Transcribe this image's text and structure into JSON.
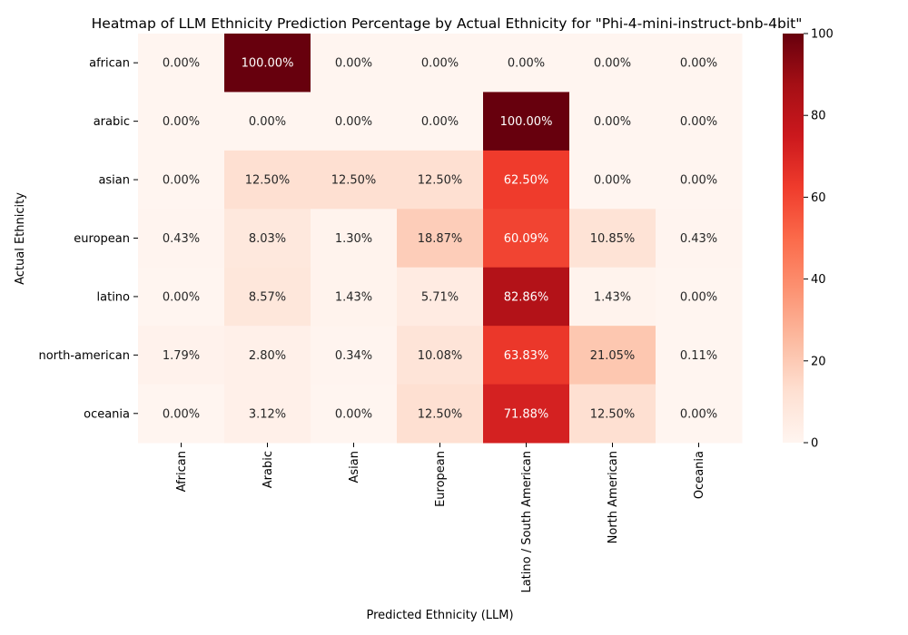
{
  "chart_data": {
    "type": "heatmap",
    "title": "Heatmap of LLM Ethnicity Prediction Percentage by Actual Ethnicity for \"Phi-4-mini-instruct-bnb-4bit\"",
    "xlabel": "Predicted Ethnicity (LLM)",
    "ylabel": "Actual Ethnicity",
    "x_categories": [
      "African",
      "Arabic",
      "Asian",
      "European",
      "Latino / South American",
      "North American",
      "Oceania"
    ],
    "y_categories": [
      "african",
      "arabic",
      "asian",
      "european",
      "latino",
      "north-american",
      "oceania"
    ],
    "values": [
      [
        0.0,
        100.0,
        0.0,
        0.0,
        0.0,
        0.0,
        0.0
      ],
      [
        0.0,
        0.0,
        0.0,
        0.0,
        100.0,
        0.0,
        0.0
      ],
      [
        0.0,
        12.5,
        12.5,
        12.5,
        62.5,
        0.0,
        0.0
      ],
      [
        0.43,
        8.03,
        1.3,
        18.87,
        60.09,
        10.85,
        0.43
      ],
      [
        0.0,
        8.57,
        1.43,
        5.71,
        82.86,
        1.43,
        0.0
      ],
      [
        1.79,
        2.8,
        0.34,
        10.08,
        63.83,
        21.05,
        0.11
      ],
      [
        0.0,
        3.12,
        0.0,
        12.5,
        71.88,
        12.5,
        0.0
      ]
    ],
    "value_labels": [
      [
        "0.00%",
        "100.00%",
        "0.00%",
        "0.00%",
        "0.00%",
        "0.00%",
        "0.00%"
      ],
      [
        "0.00%",
        "0.00%",
        "0.00%",
        "0.00%",
        "100.00%",
        "0.00%",
        "0.00%"
      ],
      [
        "0.00%",
        "12.50%",
        "12.50%",
        "12.50%",
        "62.50%",
        "0.00%",
        "0.00%"
      ],
      [
        "0.43%",
        "8.03%",
        "1.30%",
        "18.87%",
        "60.09%",
        "10.85%",
        "0.43%"
      ],
      [
        "0.00%",
        "8.57%",
        "1.43%",
        "5.71%",
        "82.86%",
        "1.43%",
        "0.00%"
      ],
      [
        "1.79%",
        "2.80%",
        "0.34%",
        "10.08%",
        "63.83%",
        "21.05%",
        "0.11%"
      ],
      [
        "0.00%",
        "3.12%",
        "0.00%",
        "12.50%",
        "71.88%",
        "12.50%",
        "0.00%"
      ]
    ],
    "colorbar": {
      "range": [
        0,
        100
      ],
      "ticks": [
        0,
        20,
        40,
        60,
        80,
        100
      ],
      "colormap": "Reds",
      "low_color": "#fff5f0",
      "high_color": "#67000d"
    }
  }
}
